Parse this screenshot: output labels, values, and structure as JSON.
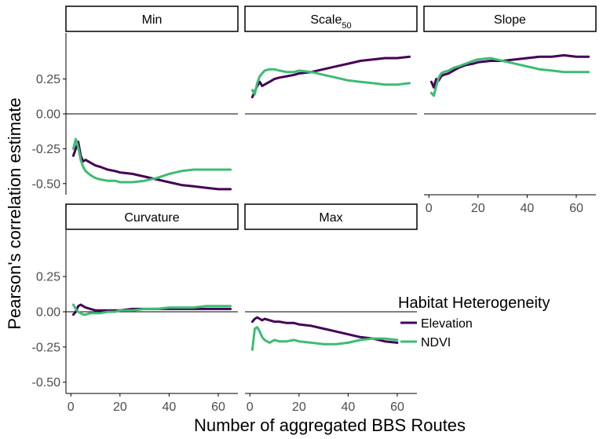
{
  "chart_data": {
    "type": "line",
    "ylabel": "Pearson's correlation estimate",
    "xlabel": "Number of aggregated BBS Routes",
    "ylim": [
      -0.58,
      0.58
    ],
    "y_ticks": [
      0.25,
      0.0,
      -0.25,
      -0.5
    ],
    "y_tick_labels": [
      "0.25",
      "0.00",
      "-0.25",
      "-0.50"
    ],
    "x_ticks": [
      0,
      20,
      40,
      60
    ],
    "x_tick_labels": [
      "0",
      "20",
      "40",
      "60"
    ],
    "reference_line_y": 0,
    "grid": false,
    "legend": {
      "title": "Habitat Heterogeneity",
      "position": "right",
      "entries": [
        {
          "name": "Elevation",
          "color": "#440154"
        },
        {
          "name": "NDVI",
          "color": "#3dbc74"
        }
      ]
    },
    "panels": [
      {
        "title": "Min",
        "title_sub": "",
        "xlim": [
          -2,
          68
        ],
        "series": [
          {
            "name": "Elevation",
            "x": [
              1,
              2,
              3,
              4,
              5,
              6,
              8,
              10,
              12,
              15,
              18,
              20,
              25,
              30,
              35,
              40,
              45,
              50,
              55,
              60,
              65
            ],
            "y": [
              -0.3,
              -0.25,
              -0.2,
              -0.3,
              -0.34,
              -0.33,
              -0.35,
              -0.37,
              -0.38,
              -0.4,
              -0.41,
              -0.42,
              -0.43,
              -0.45,
              -0.47,
              -0.49,
              -0.51,
              -0.52,
              -0.53,
              -0.54,
              -0.54
            ]
          },
          {
            "name": "NDVI",
            "x": [
              1,
              2,
              3,
              4,
              5,
              6,
              8,
              10,
              12,
              15,
              18,
              20,
              25,
              30,
              35,
              40,
              45,
              50,
              55,
              60,
              65
            ],
            "y": [
              -0.25,
              -0.18,
              -0.24,
              -0.33,
              -0.38,
              -0.41,
              -0.44,
              -0.46,
              -0.47,
              -0.48,
              -0.48,
              -0.49,
              -0.49,
              -0.48,
              -0.46,
              -0.43,
              -0.41,
              -0.4,
              -0.4,
              -0.4,
              -0.4
            ]
          }
        ]
      },
      {
        "title": "Scale",
        "title_sub": "50",
        "xlim": [
          -2,
          68
        ],
        "series": [
          {
            "name": "Elevation",
            "x": [
              1,
              2,
              3,
              4,
              5,
              6,
              8,
              10,
              12,
              15,
              18,
              20,
              25,
              30,
              35,
              40,
              45,
              50,
              55,
              60,
              65
            ],
            "y": [
              0.12,
              0.16,
              0.2,
              0.23,
              0.2,
              0.21,
              0.23,
              0.25,
              0.26,
              0.27,
              0.28,
              0.29,
              0.3,
              0.32,
              0.34,
              0.36,
              0.38,
              0.39,
              0.4,
              0.4,
              0.41
            ]
          },
          {
            "name": "NDVI",
            "x": [
              1,
              2,
              3,
              4,
              5,
              6,
              8,
              10,
              12,
              15,
              18,
              20,
              25,
              30,
              35,
              40,
              45,
              50,
              55,
              60,
              65
            ],
            "y": [
              0.17,
              0.14,
              0.22,
              0.27,
              0.29,
              0.31,
              0.32,
              0.32,
              0.31,
              0.3,
              0.3,
              0.31,
              0.3,
              0.28,
              0.26,
              0.24,
              0.23,
              0.22,
              0.21,
              0.21,
              0.22
            ]
          }
        ]
      },
      {
        "title": "Slope",
        "title_sub": "",
        "xlim": [
          -2,
          68
        ],
        "series": [
          {
            "name": "Elevation",
            "x": [
              1,
              2,
              3,
              4,
              5,
              6,
              8,
              10,
              12,
              15,
              18,
              20,
              25,
              30,
              35,
              40,
              45,
              50,
              55,
              60,
              65
            ],
            "y": [
              0.23,
              0.19,
              0.25,
              0.24,
              0.27,
              0.28,
              0.29,
              0.31,
              0.33,
              0.35,
              0.36,
              0.37,
              0.38,
              0.38,
              0.39,
              0.4,
              0.41,
              0.41,
              0.42,
              0.41,
              0.41
            ]
          },
          {
            "name": "NDVI",
            "x": [
              1,
              2,
              3,
              4,
              5,
              6,
              8,
              10,
              12,
              15,
              18,
              20,
              25,
              30,
              35,
              40,
              45,
              50,
              55,
              60,
              65
            ],
            "y": [
              0.15,
              0.13,
              0.2,
              0.26,
              0.29,
              0.3,
              0.31,
              0.33,
              0.34,
              0.36,
              0.38,
              0.39,
              0.4,
              0.38,
              0.36,
              0.34,
              0.32,
              0.31,
              0.3,
              0.3,
              0.3
            ]
          }
        ]
      },
      {
        "title": "Curvature",
        "title_sub": "",
        "xlim": [
          -2,
          68
        ],
        "series": [
          {
            "name": "Elevation",
            "x": [
              1,
              2,
              3,
              4,
              5,
              6,
              8,
              10,
              12,
              15,
              18,
              20,
              25,
              30,
              35,
              40,
              45,
              50,
              55,
              60,
              65
            ],
            "y": [
              -0.02,
              0.0,
              0.04,
              0.05,
              0.04,
              0.03,
              0.02,
              0.01,
              0.01,
              0.01,
              0.01,
              0.01,
              0.02,
              0.02,
              0.02,
              0.02,
              0.02,
              0.02,
              0.02,
              0.02,
              0.02
            ]
          },
          {
            "name": "NDVI",
            "x": [
              1,
              2,
              3,
              4,
              5,
              6,
              8,
              10,
              12,
              15,
              18,
              20,
              25,
              30,
              35,
              40,
              45,
              50,
              55,
              60,
              65
            ],
            "y": [
              0.05,
              0.02,
              0.0,
              -0.01,
              -0.02,
              -0.02,
              -0.01,
              -0.01,
              -0.01,
              0.0,
              0.0,
              0.01,
              0.01,
              0.02,
              0.02,
              0.03,
              0.03,
              0.03,
              0.04,
              0.04,
              0.04
            ]
          }
        ]
      },
      {
        "title": "Max",
        "title_sub": "",
        "xlim": [
          -2,
          68
        ],
        "series": [
          {
            "name": "Elevation",
            "x": [
              1,
              2,
              3,
              4,
              5,
              6,
              8,
              10,
              12,
              15,
              18,
              20,
              25,
              30,
              35,
              40,
              45,
              50,
              55,
              60
            ],
            "y": [
              -0.07,
              -0.05,
              -0.04,
              -0.05,
              -0.06,
              -0.05,
              -0.06,
              -0.07,
              -0.07,
              -0.08,
              -0.08,
              -0.09,
              -0.1,
              -0.12,
              -0.14,
              -0.16,
              -0.18,
              -0.19,
              -0.21,
              -0.22
            ]
          },
          {
            "name": "NDVI",
            "x": [
              1,
              2,
              3,
              4,
              5,
              6,
              8,
              10,
              12,
              15,
              18,
              20,
              25,
              30,
              35,
              40,
              45,
              50,
              55,
              60
            ],
            "y": [
              -0.27,
              -0.12,
              -0.11,
              -0.14,
              -0.18,
              -0.2,
              -0.22,
              -0.2,
              -0.21,
              -0.21,
              -0.2,
              -0.21,
              -0.22,
              -0.23,
              -0.23,
              -0.22,
              -0.2,
              -0.19,
              -0.19,
              -0.2
            ]
          }
        ]
      }
    ]
  },
  "colors": {
    "elevation": "#440154",
    "ndvi": "#3dbc74",
    "strip_fill": "#ffffff",
    "strip_border": "#000000",
    "axis": "#000000",
    "tick_text": "#4d4d4d"
  }
}
